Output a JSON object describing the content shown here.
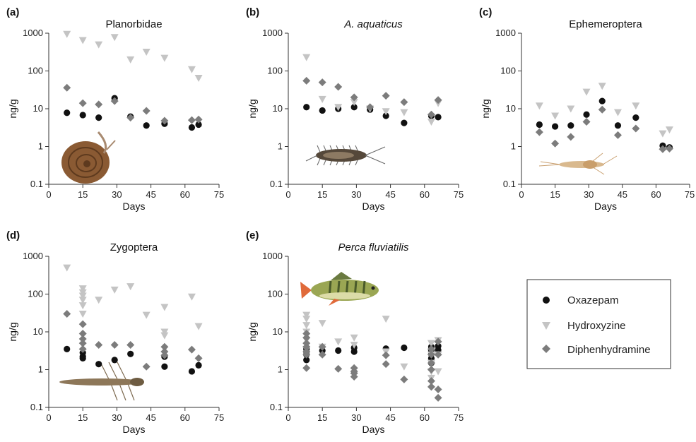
{
  "markers": {
    "Oxazepam": {
      "shape": "circle",
      "color": "#111111"
    },
    "Hydroxyzine": {
      "shape": "triangle-down",
      "color": "#c4c4c4"
    },
    "Diphenhydramine": {
      "shape": "diamond",
      "color": "#7c7c7c"
    }
  },
  "legend": {
    "placement": "right",
    "items": [
      "Oxazepam",
      "Hydroxyzine",
      "Diphenhydramine"
    ]
  },
  "chart_data": [
    {
      "type": "scatter",
      "letter": "(a)",
      "title": "Planorbidae",
      "title_italic": false,
      "xlabel": "Days",
      "ylabel": "ng/g",
      "yscale": "log",
      "xlim": [
        0,
        75
      ],
      "ylim": [
        0.1,
        1000
      ],
      "xticks": [
        0,
        15,
        30,
        45,
        60,
        75
      ],
      "yticks": [
        {
          "v": 0.1,
          "l": "0.1"
        },
        {
          "v": 1,
          "l": "1"
        },
        {
          "v": 10,
          "l": "10"
        },
        {
          "v": 100,
          "l": "100"
        },
        {
          "v": 1000,
          "l": "1000"
        }
      ],
      "illustration": "snail",
      "series": [
        {
          "name": "Oxazepam",
          "x": [
            8,
            15,
            22,
            29,
            36,
            43,
            51,
            63,
            66
          ],
          "y": [
            7.8,
            6.8,
            5.8,
            19,
            6.2,
            3.6,
            4.0,
            3.2,
            3.8
          ]
        },
        {
          "name": "Hydroxyzine",
          "x": [
            8,
            15,
            22,
            29,
            36,
            43,
            51,
            63,
            66
          ],
          "y": [
            950,
            650,
            500,
            780,
            200,
            320,
            220,
            110,
            65
          ]
        },
        {
          "name": "Diphenhydramine",
          "x": [
            8,
            15,
            22,
            29,
            36,
            43,
            51,
            63,
            66
          ],
          "y": [
            36,
            14,
            13,
            16,
            5.8,
            8.8,
            4.8,
            5.0,
            5.2
          ]
        }
      ]
    },
    {
      "type": "scatter",
      "letter": "(b)",
      "title": "A. aquaticus",
      "title_italic": true,
      "xlabel": "Days",
      "ylabel": "ng/g",
      "yscale": "log",
      "xlim": [
        0,
        75
      ],
      "ylim": [
        0.1,
        1000
      ],
      "xticks": [
        0,
        15,
        30,
        45,
        60,
        75
      ],
      "yticks": [
        {
          "v": 0.1,
          "l": "0.1"
        },
        {
          "v": 1,
          "l": "1"
        },
        {
          "v": 10,
          "l": "10"
        },
        {
          "v": 100,
          "l": "100"
        },
        {
          "v": 1000,
          "l": "1000"
        }
      ],
      "illustration": "isopod",
      "series": [
        {
          "name": "Oxazepam",
          "x": [
            8,
            15,
            22,
            29,
            36,
            43,
            51,
            63,
            66
          ],
          "y": [
            11,
            9,
            10,
            11,
            9.5,
            6.5,
            4.2,
            6.5,
            6.0
          ]
        },
        {
          "name": "Hydroxyzine",
          "x": [
            8,
            15,
            22,
            29,
            36,
            43,
            51,
            63,
            66
          ],
          "y": [
            230,
            18,
            11,
            15,
            10,
            8.5,
            8.0,
            4.5,
            14
          ]
        },
        {
          "name": "Diphenhydramine",
          "x": [
            8,
            15,
            22,
            29,
            36,
            43,
            51,
            63,
            66
          ],
          "y": [
            55,
            50,
            38,
            20,
            11,
            22,
            15,
            7.0,
            17
          ]
        }
      ]
    },
    {
      "type": "scatter",
      "letter": "(c)",
      "title": "Ephemeroptera",
      "title_italic": false,
      "xlabel": "Days",
      "ylabel": "ng/g",
      "yscale": "log",
      "xlim": [
        0,
        75
      ],
      "ylim": [
        0.1,
        1000
      ],
      "xticks": [
        0,
        15,
        30,
        45,
        60,
        75
      ],
      "yticks": [
        {
          "v": 0.1,
          "l": "0.1"
        },
        {
          "v": 1,
          "l": "1"
        },
        {
          "v": 10,
          "l": "10"
        },
        {
          "v": 100,
          "l": "100"
        },
        {
          "v": 1000,
          "l": "1000"
        }
      ],
      "illustration": "mayfly",
      "series": [
        {
          "name": "Oxazepam",
          "x": [
            8,
            15,
            22,
            29,
            36,
            43,
            51,
            63,
            66
          ],
          "y": [
            3.8,
            3.4,
            3.6,
            7.0,
            16,
            3.6,
            5.8,
            1.05,
            0.95
          ]
        },
        {
          "name": "Hydroxyzine",
          "x": [
            8,
            15,
            22,
            29,
            36,
            43,
            51,
            63,
            66
          ],
          "y": [
            12,
            6.5,
            10,
            28,
            40,
            8.0,
            12,
            2.2,
            2.8
          ]
        },
        {
          "name": "Diphenhydramine",
          "x": [
            8,
            15,
            22,
            29,
            36,
            43,
            51,
            63,
            66
          ],
          "y": [
            2.4,
            1.2,
            1.8,
            4.5,
            9.5,
            2.0,
            3.0,
            0.85,
            0.88
          ]
        }
      ]
    },
    {
      "type": "scatter",
      "letter": "(d)",
      "title": "Zygoptera",
      "title_italic": false,
      "xlabel": "Days",
      "ylabel": "ng/g",
      "yscale": "log",
      "xlim": [
        0,
        75
      ],
      "ylim": [
        0.1,
        1000
      ],
      "xticks": [
        0,
        15,
        30,
        45,
        60,
        75
      ],
      "yticks": [
        {
          "v": 0.1,
          "l": "0.1"
        },
        {
          "v": 1,
          "l": "1"
        },
        {
          "v": 10,
          "l": "10"
        },
        {
          "v": 100,
          "l": "100"
        },
        {
          "v": 1000,
          "l": "1000"
        }
      ],
      "illustration": "damselfly",
      "series": [
        {
          "name": "Oxazepam",
          "x": [
            8,
            15,
            15,
            15,
            22,
            29,
            36,
            51,
            51,
            63,
            66
          ],
          "y": [
            3.5,
            2.8,
            2.2,
            2.0,
            1.4,
            1.8,
            2.6,
            2.2,
            1.2,
            0.9,
            1.3
          ]
        },
        {
          "name": "Hydroxyzine",
          "x": [
            8,
            15,
            15,
            15,
            15,
            15,
            15,
            22,
            29,
            36,
            43,
            51,
            51,
            51,
            63,
            66
          ],
          "y": [
            500,
            140,
            110,
            90,
            70,
            50,
            30,
            70,
            130,
            160,
            28,
            45,
            10,
            8,
            85,
            14
          ]
        },
        {
          "name": "Diphenhydramine",
          "x": [
            8,
            15,
            15,
            15,
            15,
            15,
            22,
            29,
            36,
            43,
            51,
            51,
            51,
            63,
            66
          ],
          "y": [
            30,
            16,
            9,
            6.5,
            5,
            3.5,
            4.5,
            4.5,
            4.5,
            1.2,
            4.0,
            3.0,
            2.4,
            3.4,
            2.0
          ]
        }
      ]
    },
    {
      "type": "scatter",
      "letter": "(e)",
      "title": "Perca fluviatilis",
      "title_italic": true,
      "xlabel": "Days",
      "ylabel": "ng/g",
      "yscale": "log",
      "xlim": [
        0,
        75
      ],
      "ylim": [
        0.1,
        1000
      ],
      "xticks": [
        0,
        15,
        30,
        45,
        60,
        75
      ],
      "yticks": [
        {
          "v": 0.1,
          "l": "0.1"
        },
        {
          "v": 1,
          "l": "1"
        },
        {
          "v": 10,
          "l": "10"
        },
        {
          "v": 100,
          "l": "100"
        },
        {
          "v": 1000,
          "l": "1000"
        }
      ],
      "illustration": "perch",
      "series": [
        {
          "name": "Oxazepam",
          "x": [
            8,
            8,
            8,
            8,
            15,
            22,
            29,
            29,
            43,
            51,
            63,
            63,
            63,
            63,
            63,
            66,
            66
          ],
          "y": [
            3.5,
            3.0,
            2.5,
            1.8,
            3.2,
            3.2,
            3.8,
            3.0,
            3.6,
            3.8,
            4.0,
            3.2,
            2.6,
            2.0,
            1.5,
            4.2,
            3.3
          ]
        },
        {
          "name": "Hydroxyzine",
          "x": [
            8,
            8,
            8,
            8,
            8,
            8,
            15,
            15,
            22,
            29,
            29,
            43,
            43,
            51,
            63,
            63,
            63,
            63,
            63,
            66,
            66,
            66
          ],
          "y": [
            28,
            22,
            15,
            10,
            6,
            3.5,
            17,
            4.0,
            5.5,
            7.0,
            4.5,
            22,
            3.0,
            1.2,
            5.0,
            2.5,
            1.5,
            0.9,
            0.6,
            6.0,
            2.5,
            0.9
          ]
        },
        {
          "name": "Diphenhydramine",
          "x": [
            8,
            8,
            8,
            8,
            8,
            8,
            8,
            15,
            15,
            22,
            29,
            29,
            29,
            29,
            43,
            43,
            51,
            63,
            63,
            63,
            63,
            63,
            63,
            66,
            66,
            66,
            66
          ],
          "y": [
            9,
            7,
            5,
            4,
            3,
            2.5,
            1.1,
            4.0,
            2.5,
            1.05,
            1.1,
            0.9,
            0.8,
            0.65,
            2.4,
            1.4,
            0.55,
            3.5,
            2.5,
            1.5,
            1.0,
            0.5,
            0.35,
            5.5,
            2.5,
            0.3,
            0.18
          ]
        }
      ]
    }
  ]
}
